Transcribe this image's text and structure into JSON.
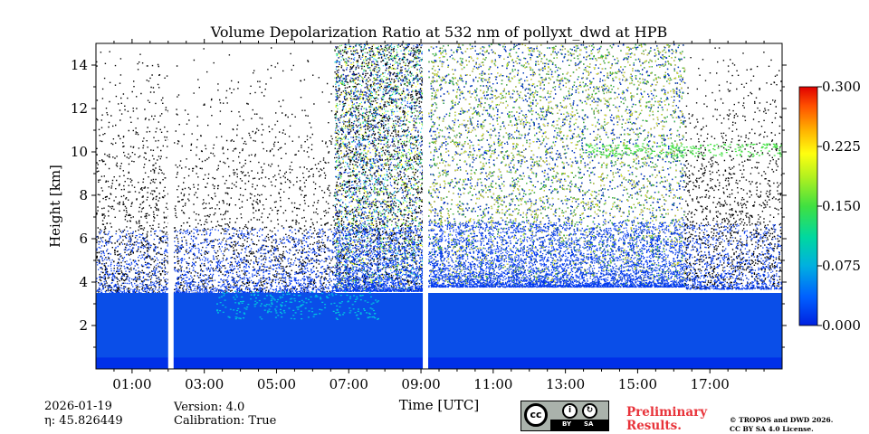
{
  "chart_data": {
    "type": "heatmap",
    "title": "Volume Depolarization Ratio at 532 nm of pollyxt_dwd at HPB",
    "xlabel": "Time [UTC]",
    "ylabel": "Height [km]",
    "xlim": [
      0.0,
      19.0
    ],
    "ylim": [
      0.0,
      15.0
    ],
    "x_ticks": [
      1,
      3,
      5,
      7,
      9,
      11,
      13,
      15,
      17
    ],
    "x_tick_labels": [
      "01:00",
      "03:00",
      "05:00",
      "07:00",
      "09:00",
      "11:00",
      "13:00",
      "15:00",
      "17:00"
    ],
    "y_ticks": [
      2,
      4,
      6,
      8,
      10,
      12,
      14
    ],
    "y_tick_labels": [
      "2",
      "4",
      "6",
      "8",
      "10",
      "12",
      "14"
    ],
    "colorbar": {
      "range": [
        0.0,
        0.3
      ],
      "ticks": [
        0.0,
        0.075,
        0.15,
        0.225,
        0.3
      ],
      "tick_labels": [
        "0.000",
        "0.075",
        "0.150",
        "0.225",
        "0.300"
      ],
      "colormap": "jet"
    },
    "data_gaps_hours": [
      [
        2.0,
        2.15
      ],
      [
        9.05,
        9.2
      ]
    ],
    "segments": [
      {
        "from_hour": 0.0,
        "to_hour": 2.0,
        "boundary_layer_top_km": 3.4,
        "signal": "noisy"
      },
      {
        "from_hour": 2.15,
        "to_hour": 6.6,
        "boundary_layer_top_km": 3.5,
        "signal": "low-noise, clear sky"
      },
      {
        "from_hour": 6.6,
        "to_hour": 9.05,
        "boundary_layer_top_km": 3.6,
        "signal": "very noisy"
      },
      {
        "from_hour": 9.2,
        "to_hour": 16.3,
        "boundary_layer_top_km": 3.8,
        "signal": "very noisy"
      },
      {
        "from_hour": 16.3,
        "to_hour": 19.0,
        "boundary_layer_top_km": 3.7,
        "signal": "noisy"
      }
    ],
    "layers": [
      {
        "name": "near-surface aerosol",
        "from_hour": 0.0,
        "to_hour": 19.0,
        "bottom_km": 0.0,
        "top_km": 3.5,
        "depol": 0.03
      },
      {
        "name": "depolarizing layer",
        "from_hour": 3.3,
        "to_hour": 7.8,
        "bottom_km": 2.3,
        "top_km": 3.6,
        "depol": 0.12
      },
      {
        "name": "elevated thin layer",
        "from_hour": 13.5,
        "to_hour": 19.0,
        "bottom_km": 9.8,
        "top_km": 10.4,
        "depol": 0.18
      }
    ]
  },
  "info": {
    "date": "2026-01-19",
    "eta_label": "η: 45.826449",
    "version": "Version: 4.0",
    "calibration": "Calibration: True"
  },
  "license": {
    "cc": "cc",
    "by": "BY",
    "sa": "SA",
    "preliminary_line1": "Preliminary",
    "preliminary_line2": "Results.",
    "copyright_line1": "© TROPOS and DWD 2026.",
    "copyright_line2": "CC BY SA 4.0 License."
  },
  "colors": {
    "low": "#0000ff",
    "high": "#ff0000",
    "prelim": "#e8333a"
  }
}
